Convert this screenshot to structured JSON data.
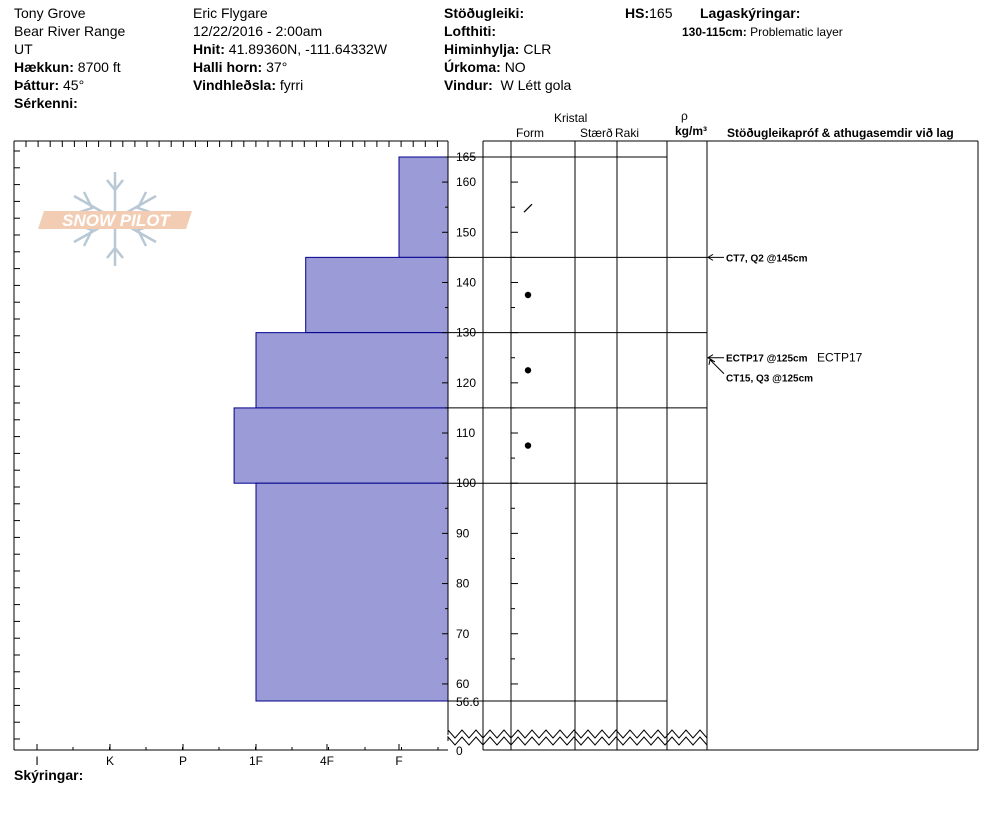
{
  "header": {
    "location": "Tony Grove",
    "range": "Bear River Range",
    "state": "UT",
    "elevation_label": "Hækkun:",
    "elevation_value": "8700 ft",
    "aspect_label": "Þáttur:",
    "aspect_value": "45°",
    "features_label": "Sérkenni:",
    "observer": "Eric Flygare",
    "datetime": "12/22/2016 - 2:00am",
    "coords_label": "Hnit:",
    "coords_value": "41.89360N, -111.64332W",
    "slope_label": "Halli horn:",
    "slope_value": "37°",
    "wind_loading_label": "Vindhleðsla:",
    "wind_loading_value": "fyrri",
    "stability_label": "Stöðugleiki:",
    "air_temp_label": "Lofthiti:",
    "sky_label": "Himinhylja:",
    "sky_value": "CLR",
    "precip_label": "Úrkoma:",
    "precip_value": "NO",
    "wind_label": "Vindur:",
    "wind_value": "W Létt gola",
    "hs_label": "HS:",
    "hs_value": "165",
    "layer_notes_label": "Lagaskýringar:",
    "layer_note_range": "130-115cm:",
    "layer_note_text": "Problematic layer"
  },
  "columns": {
    "crystal": "Kristal",
    "form": "Form",
    "size": "Stærð",
    "moisture": "Raki",
    "rho": "ρ",
    "density_unit": "kg/m³",
    "tests_comments": "Stöðugleikapróf & athugasemdir við lag"
  },
  "footer": {
    "notes_label": "Skýringar:"
  },
  "logo_text": "SNOW PILOT",
  "colors": {
    "hardness_fill": "#9b9bd7",
    "hardness_stroke": "#00008b",
    "logo_fill": "#f2cdb3",
    "snowflake": "#b8c8d4"
  },
  "chart_data": {
    "type": "bar",
    "orientation": "horizontal",
    "title": "",
    "ylabel": "",
    "xlabel": "",
    "ylim": [
      0,
      165
    ],
    "axis_break_below": 56.6,
    "hardness_scale": [
      "I",
      "K",
      "P",
      "1F",
      "4F",
      "F"
    ],
    "height_ticks": [
      60,
      70,
      80,
      90,
      100,
      110,
      120,
      130,
      140,
      150,
      160
    ],
    "boundary_labels": [
      "165",
      "56.6",
      "0"
    ],
    "layers": [
      {
        "top": 165,
        "bottom": 145,
        "hardness": "F",
        "hardness_index": 5.0,
        "grain": "faceted-rounded",
        "grain_height": 155
      },
      {
        "top": 145,
        "bottom": 130,
        "hardness": "1F+",
        "hardness_index": 3.7,
        "grain": "graupel-dot",
        "grain_height": 137.5
      },
      {
        "top": 130,
        "bottom": 115,
        "hardness": "1F",
        "hardness_index": 3.0,
        "grain": "graupel-dot",
        "grain_height": 122.5
      },
      {
        "top": 115,
        "bottom": 100,
        "hardness": "1F-",
        "hardness_index": 2.7,
        "grain": "graupel-dot",
        "grain_height": 107.5
      },
      {
        "top": 100,
        "bottom": 56.6,
        "hardness": "1F",
        "hardness_index": 3.0,
        "grain": "",
        "grain_height": null
      }
    ],
    "tests": [
      {
        "height": 145,
        "label": "CT7, Q2 @145cm",
        "extra": ""
      },
      {
        "height": 125,
        "label": "ECTP17 @125cm",
        "extra": "ECTP17"
      },
      {
        "height": 125,
        "label": "CT15, Q3 @125cm",
        "extra": ""
      }
    ]
  }
}
